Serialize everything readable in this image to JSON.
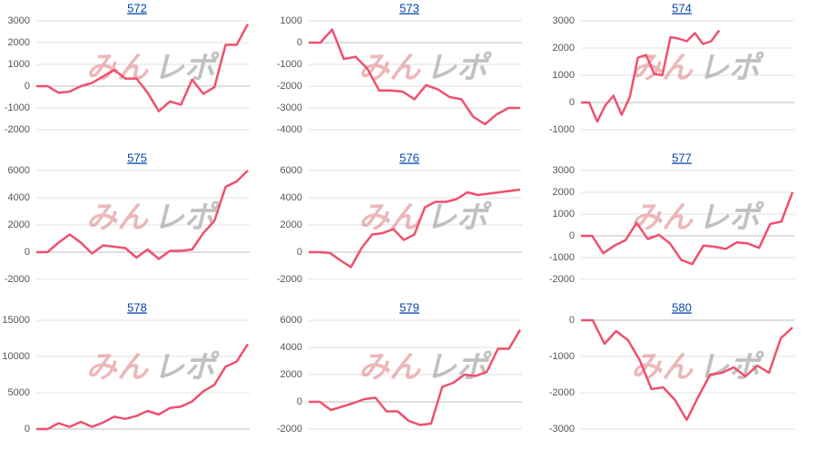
{
  "watermark": {
    "left": "みん",
    "right": "レポ"
  },
  "chart_data": [
    {
      "type": "line",
      "title": "572",
      "color": "#f0506e",
      "grid": true,
      "ylim": [
        -2000,
        3000
      ],
      "yticks": [
        -2000,
        -1000,
        0,
        1000,
        2000,
        3000
      ],
      "values": [
        0,
        0,
        -300,
        -250,
        0,
        150,
        450,
        750,
        350,
        350,
        -300,
        -1150,
        -700,
        -850,
        300,
        -350,
        -50,
        1900,
        1900,
        2850
      ]
    },
    {
      "type": "line",
      "title": "573",
      "color": "#f0506e",
      "grid": true,
      "ylim": [
        -4000,
        1000
      ],
      "yticks": [
        -4000,
        -3000,
        -2000,
        -1000,
        0,
        1000
      ],
      "values": [
        0,
        0,
        600,
        -750,
        -650,
        -1200,
        -2200,
        -2200,
        -2250,
        -2600,
        -1950,
        -2150,
        -2500,
        -2600,
        -3400,
        -3750,
        -3300,
        -3000,
        -3000
      ]
    },
    {
      "type": "line",
      "title": "574",
      "color": "#f0506e",
      "grid": true,
      "ylim": [
        -1000,
        3000
      ],
      "yticks": [
        -1000,
        0,
        1000,
        2000,
        3000
      ],
      "values": [
        0,
        0,
        -700,
        -100,
        250,
        -450,
        200,
        1650,
        1750,
        1050,
        1000,
        2400,
        2350,
        2250,
        2550,
        2150,
        2250,
        2650,
        null,
        null,
        null,
        null,
        null,
        null,
        null,
        null,
        null
      ]
    },
    {
      "type": "line",
      "title": "575",
      "color": "#f0506e",
      "grid": true,
      "ylim": [
        -2000,
        6000
      ],
      "yticks": [
        -2000,
        0,
        2000,
        4000,
        6000
      ],
      "values": [
        0,
        0,
        700,
        1300,
        700,
        -100,
        500,
        400,
        300,
        -400,
        200,
        -500,
        100,
        100,
        200,
        1400,
        2300,
        4800,
        5200,
        6000
      ]
    },
    {
      "type": "line",
      "title": "576",
      "color": "#f0506e",
      "grid": true,
      "ylim": [
        -2000,
        6000
      ],
      "yticks": [
        -2000,
        0,
        2000,
        4000,
        6000
      ],
      "values": [
        0,
        0,
        -50,
        -600,
        -1100,
        300,
        1300,
        1400,
        1700,
        900,
        1300,
        3300,
        3700,
        3700,
        3900,
        4400,
        4200,
        4300,
        4400,
        4500,
        4600
      ]
    },
    {
      "type": "line",
      "title": "577",
      "color": "#f0506e",
      "grid": true,
      "ylim": [
        -2000,
        3000
      ],
      "yticks": [
        -2000,
        -1000,
        0,
        1000,
        2000,
        3000
      ],
      "values": [
        0,
        0,
        -800,
        -450,
        -200,
        600,
        -150,
        50,
        -350,
        -1100,
        -1300,
        -450,
        -500,
        -600,
        -300,
        -350,
        -550,
        550,
        650,
        2000
      ]
    },
    {
      "type": "line",
      "title": "578",
      "color": "#f0506e",
      "grid": true,
      "ylim": [
        0,
        15000
      ],
      "yticks": [
        0,
        5000,
        10000,
        15000
      ],
      "values": [
        0,
        0,
        800,
        300,
        1000,
        300,
        900,
        1700,
        1400,
        1800,
        2500,
        2000,
        2900,
        3100,
        3800,
        5200,
        6100,
        8600,
        9300,
        11700
      ]
    },
    {
      "type": "line",
      "title": "579",
      "color": "#f0506e",
      "grid": true,
      "ylim": [
        -2000,
        6000
      ],
      "yticks": [
        -2000,
        0,
        2000,
        4000,
        6000
      ],
      "values": [
        0,
        0,
        -600,
        -350,
        -100,
        200,
        300,
        -700,
        -700,
        -1400,
        -1700,
        -1600,
        1100,
        1400,
        2000,
        1900,
        2200,
        3900,
        3900,
        5300
      ]
    },
    {
      "type": "line",
      "title": "580",
      "color": "#f0506e",
      "grid": true,
      "ylim": [
        -3000,
        0
      ],
      "yticks": [
        -3000,
        -2000,
        -1000,
        0
      ],
      "values": [
        0,
        0,
        -650,
        -300,
        -550,
        -1100,
        -1900,
        -1850,
        -2200,
        -2750,
        -2100,
        -1500,
        -1450,
        -1300,
        -1550,
        -1250,
        -1450,
        -500,
        -200
      ]
    }
  ]
}
